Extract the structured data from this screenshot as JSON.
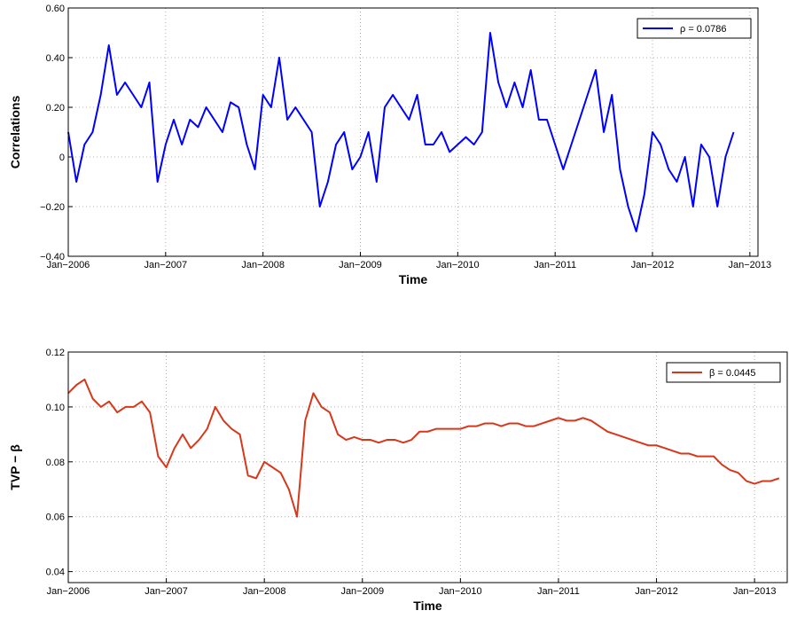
{
  "chart_data": [
    {
      "type": "line",
      "xlabel": "Time",
      "ylabel": "Correlations",
      "x": [
        "2006-01",
        "2006-02",
        "2006-03",
        "2006-04",
        "2006-05",
        "2006-06",
        "2006-07",
        "2006-08",
        "2006-09",
        "2006-10",
        "2006-11",
        "2006-12",
        "2007-01",
        "2007-02",
        "2007-03",
        "2007-04",
        "2007-05",
        "2007-06",
        "2007-07",
        "2007-08",
        "2007-09",
        "2007-10",
        "2007-11",
        "2007-12",
        "2008-01",
        "2008-02",
        "2008-03",
        "2008-04",
        "2008-05",
        "2008-06",
        "2008-07",
        "2008-08",
        "2008-09",
        "2008-10",
        "2008-11",
        "2008-12",
        "2009-01",
        "2009-02",
        "2009-03",
        "2009-04",
        "2009-05",
        "2009-06",
        "2009-07",
        "2009-08",
        "2009-09",
        "2009-10",
        "2009-11",
        "2009-12",
        "2010-01",
        "2010-02",
        "2010-03",
        "2010-04",
        "2010-05",
        "2010-06",
        "2010-07",
        "2010-08",
        "2010-09",
        "2010-10",
        "2010-11",
        "2010-12",
        "2011-01",
        "2011-02",
        "2011-03",
        "2011-04",
        "2011-05",
        "2011-06",
        "2011-07",
        "2011-08",
        "2011-09",
        "2011-10",
        "2011-11",
        "2011-12",
        "2012-01",
        "2012-02",
        "2012-03",
        "2012-04",
        "2012-05",
        "2012-06",
        "2012-07",
        "2012-08",
        "2012-09",
        "2012-10",
        "2012-11"
      ],
      "series": [
        {
          "name": "ρ = 0.0786",
          "color": "#0000ff",
          "values": [
            0.1,
            -0.1,
            0.05,
            0.1,
            0.25,
            0.45,
            0.25,
            0.3,
            0.25,
            0.2,
            0.3,
            -0.1,
            0.05,
            0.15,
            0.05,
            0.15,
            0.12,
            0.2,
            0.15,
            0.1,
            0.22,
            0.2,
            0.05,
            -0.05,
            0.25,
            0.2,
            0.4,
            0.15,
            0.2,
            0.15,
            0.1,
            -0.2,
            -0.1,
            0.05,
            0.1,
            -0.05,
            0.0,
            0.1,
            -0.1,
            0.2,
            0.25,
            0.2,
            0.15,
            0.25,
            0.05,
            0.05,
            0.1,
            0.02,
            0.05,
            0.08,
            0.05,
            0.1,
            0.5,
            0.3,
            0.2,
            0.3,
            0.2,
            0.35,
            0.15,
            0.15,
            0.05,
            -0.05,
            0.05,
            0.15,
            0.25,
            0.35,
            0.1,
            0.25,
            -0.05,
            -0.2,
            -0.3,
            -0.15,
            0.1,
            0.05,
            -0.05,
            -0.1,
            0.0,
            -0.2,
            0.05,
            0.0,
            -0.2,
            0.0,
            0.1
          ]
        }
      ],
      "xlim": [
        "2006-01",
        "2013-02"
      ],
      "xticks": [
        {
          "value": "2006-01",
          "label": "Jan−2006"
        },
        {
          "value": "2007-01",
          "label": "Jan−2007"
        },
        {
          "value": "2008-01",
          "label": "Jan−2008"
        },
        {
          "value": "2009-01",
          "label": "Jan−2009"
        },
        {
          "value": "2010-01",
          "label": "Jan−2010"
        },
        {
          "value": "2011-01",
          "label": "Jan−2011"
        },
        {
          "value": "2012-01",
          "label": "Jan−2012"
        },
        {
          "value": "2013-01",
          "label": "Jan−2013"
        }
      ],
      "ylim": [
        -0.4,
        0.6
      ],
      "yticks": [
        {
          "value": -0.4,
          "label": "−0.40"
        },
        {
          "value": -0.2,
          "label": "−0.20"
        },
        0,
        {
          "value": 0.2,
          "label": "0.20"
        },
        {
          "value": 0.4,
          "label": "0.40"
        },
        {
          "value": 0.6,
          "label": "0.60"
        }
      ],
      "grid": true,
      "legend": "upper right"
    },
    {
      "type": "line",
      "xlabel": "Time",
      "ylabel": "TVP − β",
      "x": [
        "2006-01",
        "2006-02",
        "2006-03",
        "2006-04",
        "2006-05",
        "2006-06",
        "2006-07",
        "2006-08",
        "2006-09",
        "2006-10",
        "2006-11",
        "2006-12",
        "2007-01",
        "2007-02",
        "2007-03",
        "2007-04",
        "2007-05",
        "2007-06",
        "2007-07",
        "2007-08",
        "2007-09",
        "2007-10",
        "2007-11",
        "2007-12",
        "2008-01",
        "2008-02",
        "2008-03",
        "2008-04",
        "2008-05",
        "2008-06",
        "2008-07",
        "2008-08",
        "2008-09",
        "2008-10",
        "2008-11",
        "2008-12",
        "2009-01",
        "2009-02",
        "2009-03",
        "2009-04",
        "2009-05",
        "2009-06",
        "2009-07",
        "2009-08",
        "2009-09",
        "2009-10",
        "2009-11",
        "2009-12",
        "2010-01",
        "2010-02",
        "2010-03",
        "2010-04",
        "2010-05",
        "2010-06",
        "2010-07",
        "2010-08",
        "2010-09",
        "2010-10",
        "2010-11",
        "2010-12",
        "2011-01",
        "2011-02",
        "2011-03",
        "2011-04",
        "2011-05",
        "2011-06",
        "2011-07",
        "2011-08",
        "2011-09",
        "2011-10",
        "2011-11",
        "2011-12",
        "2012-01",
        "2012-02",
        "2012-03",
        "2012-04",
        "2012-05",
        "2012-06",
        "2012-07",
        "2012-08",
        "2012-09",
        "2012-10",
        "2012-11",
        "2012-12",
        "2013-01",
        "2013-02",
        "2013-03",
        "2013-04"
      ],
      "series": [
        {
          "name": "β = 0.0445",
          "color": "#d7381b",
          "values": [
            0.105,
            0.108,
            0.11,
            0.103,
            0.1,
            0.102,
            0.098,
            0.1,
            0.1,
            0.102,
            0.098,
            0.082,
            0.078,
            0.085,
            0.09,
            0.085,
            0.088,
            0.092,
            0.1,
            0.095,
            0.092,
            0.09,
            0.075,
            0.074,
            0.08,
            0.078,
            0.076,
            0.07,
            0.06,
            0.095,
            0.105,
            0.1,
            0.098,
            0.09,
            0.088,
            0.089,
            0.088,
            0.088,
            0.087,
            0.088,
            0.088,
            0.087,
            0.088,
            0.091,
            0.091,
            0.092,
            0.092,
            0.092,
            0.092,
            0.093,
            0.093,
            0.094,
            0.094,
            0.093,
            0.094,
            0.094,
            0.093,
            0.093,
            0.094,
            0.095,
            0.096,
            0.095,
            0.095,
            0.096,
            0.095,
            0.093,
            0.091,
            0.09,
            0.089,
            0.088,
            0.087,
            0.086,
            0.086,
            0.085,
            0.084,
            0.083,
            0.083,
            0.082,
            0.082,
            0.082,
            0.079,
            0.077,
            0.076,
            0.073,
            0.072,
            0.073,
            0.073,
            0.074
          ]
        }
      ],
      "xlim": [
        "2006-01",
        "2013-05"
      ],
      "xticks": [
        {
          "value": "2006-01",
          "label": "Jan−2006"
        },
        {
          "value": "2007-01",
          "label": "Jan−2007"
        },
        {
          "value": "2008-01",
          "label": "Jan−2008"
        },
        {
          "value": "2009-01",
          "label": "Jan−2009"
        },
        {
          "value": "2010-01",
          "label": "Jan−2010"
        },
        {
          "value": "2011-01",
          "label": "Jan−2011"
        },
        {
          "value": "2012-01",
          "label": "Jan−2012"
        },
        {
          "value": "2013-01",
          "label": "Jan−2013"
        }
      ],
      "ylim": [
        0.036,
        0.12
      ],
      "yticks": [
        0.04,
        0.06,
        0.08,
        {
          "value": 0.1,
          "label": "0.10"
        },
        0.12
      ],
      "grid": true,
      "legend": "upper right"
    }
  ]
}
